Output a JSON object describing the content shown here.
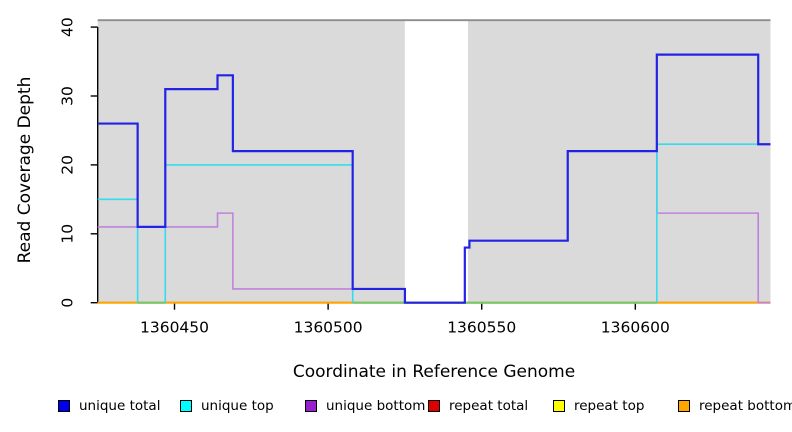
{
  "chart_data": {
    "type": "line",
    "subtype": "step",
    "title": "",
    "xlabel": "Coordinate in Reference Genome",
    "ylabel": "Read Coverage Depth",
    "xlim": [
      1360425,
      1360644
    ],
    "ylim": [
      0,
      41
    ],
    "x_ticks": [
      1360450,
      1360500,
      1360550,
      1360600
    ],
    "y_ticks": [
      0,
      10,
      20,
      30,
      40
    ],
    "grid": "off",
    "legend_position": "bottom",
    "background_color": "#ffffff",
    "shaded_region_color": "#dadada",
    "shaded_regions": [
      {
        "from": 1360425,
        "to": 1360525
      },
      {
        "from": 1360545.5,
        "to": 1360644
      }
    ],
    "gap_region": {
      "from": 1360525,
      "to": 1360545.5,
      "color": "#ffffff"
    },
    "top_border_color": "#8c8c8c",
    "series": [
      {
        "name": "unique total",
        "color": "#2323e6",
        "steps": [
          [
            1360425,
            26
          ],
          [
            1360438,
            11
          ],
          [
            1360447,
            31
          ],
          [
            1360464,
            33
          ],
          [
            1360469,
            22
          ],
          [
            1360508,
            2
          ],
          [
            1360525,
            0
          ],
          [
            1360544.5,
            8
          ],
          [
            1360546,
            9
          ],
          [
            1360578,
            22
          ],
          [
            1360607,
            36
          ],
          [
            1360640,
            23
          ]
        ]
      },
      {
        "name": "unique top",
        "color": "#35dcee",
        "steps": [
          [
            1360425,
            15
          ],
          [
            1360438,
            0
          ],
          [
            1360447,
            20
          ],
          [
            1360508,
            0
          ],
          [
            1360607,
            23
          ]
        ]
      },
      {
        "name": "unique bottom",
        "color": "#bf83da",
        "steps": [
          [
            1360425,
            11
          ],
          [
            1360464,
            13
          ],
          [
            1360469,
            2
          ],
          [
            1360525,
            0
          ],
          [
            1360544.5,
            8
          ],
          [
            1360546,
            9
          ],
          [
            1360578,
            22
          ],
          [
            1360607,
            13
          ],
          [
            1360640,
            0
          ]
        ]
      },
      {
        "name": "repeat total",
        "color": "#dd0000",
        "steps": [
          [
            1360425,
            0
          ]
        ]
      },
      {
        "name": "repeat top",
        "color": "#ffff00",
        "steps": [
          [
            1360425,
            0
          ]
        ]
      },
      {
        "name": "repeat bottom",
        "color": "#ffa500",
        "steps": [
          [
            1360425,
            0
          ]
        ]
      }
    ],
    "overlap_blend_segments": [
      {
        "note": "unique-top at depth 0 over repeat lines renders greenish",
        "from": 1360438,
        "to": 1360447,
        "value": 0,
        "color": "#72c972"
      },
      {
        "note": "unique-top at depth 0 over repeat lines renders greenish",
        "from": 1360508,
        "to": 1360607,
        "value": 0,
        "color": "#72c972"
      }
    ]
  },
  "legend": {
    "items": [
      {
        "label": "unique total",
        "color": "#0000ee"
      },
      {
        "label": "unique top",
        "color": "#00ffff"
      },
      {
        "label": "unique bottom",
        "color": "#9820ce"
      },
      {
        "label": "repeat total",
        "color": "#dd0000"
      },
      {
        "label": "repeat top",
        "color": "#ffff00"
      },
      {
        "label": "repeat bottom",
        "color": "#ffa500"
      }
    ]
  }
}
